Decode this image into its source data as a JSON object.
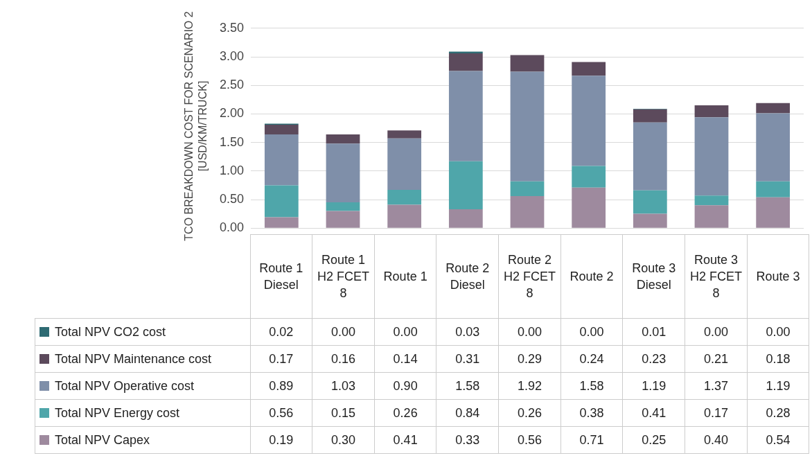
{
  "chart_data": {
    "type": "bar",
    "stacked": true,
    "ylabel": "TCO BREAKDOWN COST FOR SCENARIO 2 [USD/KM/TRUCK]",
    "categories": [
      "Route 1 Diesel",
      "Route 1 H2 FCET 8",
      "Route 1",
      "Route 2 Diesel",
      "Route 2 H2 FCET 8",
      "Route 2",
      "Route 3 Diesel",
      "Route 3 H2 FCET 8",
      "Route 3"
    ],
    "series": [
      {
        "name": "Total NPV Capex",
        "color": "#9e8a9e",
        "values": [
          0.19,
          0.3,
          0.41,
          0.33,
          0.56,
          0.71,
          0.25,
          0.4,
          0.54
        ],
        "value_labels": [
          "0.19",
          "0.30",
          "0.41",
          "0.33",
          "0.56",
          "0.71",
          "0.25",
          "0.40",
          "0.54"
        ]
      },
      {
        "name": "Total NPV Energy cost",
        "color": "#4fa6aa",
        "values": [
          0.56,
          0.15,
          0.26,
          0.84,
          0.26,
          0.38,
          0.41,
          0.17,
          0.28
        ],
        "value_labels": [
          "0.56",
          "0.15",
          "0.26",
          "0.84",
          "0.26",
          "0.38",
          "0.41",
          "0.17",
          "0.28"
        ]
      },
      {
        "name": "Total NPV Operative cost",
        "color": "#7f8fa9",
        "values": [
          0.89,
          1.03,
          0.9,
          1.58,
          1.92,
          1.58,
          1.19,
          1.37,
          1.19
        ],
        "value_labels": [
          "0.89",
          "1.03",
          "0.90",
          "1.58",
          "1.92",
          "1.58",
          "1.19",
          "1.37",
          "1.19"
        ]
      },
      {
        "name": "Total NPV Maintenance cost",
        "color": "#5c4a5c",
        "values": [
          0.17,
          0.16,
          0.14,
          0.31,
          0.29,
          0.24,
          0.23,
          0.21,
          0.18
        ],
        "value_labels": [
          "0.17",
          "0.16",
          "0.14",
          "0.31",
          "0.29",
          "0.24",
          "0.23",
          "0.21",
          "0.18"
        ]
      },
      {
        "name": "Total NPV CO2 cost",
        "color": "#2e6b73",
        "values": [
          0.02,
          0.0,
          0.0,
          0.03,
          0.0,
          0.0,
          0.01,
          0.0,
          0.0
        ],
        "value_labels": [
          "0.02",
          "0.00",
          "0.00",
          "0.03",
          "0.00",
          "0.00",
          "0.01",
          "0.00",
          "0.00"
        ]
      }
    ],
    "ylim": [
      0,
      3.5
    ],
    "yticks": [
      {
        "value": 0,
        "label": "0.00"
      },
      {
        "value": 0.5,
        "label": "0.50"
      },
      {
        "value": 1,
        "label": "1.00"
      },
      {
        "value": 1.5,
        "label": "1.50"
      },
      {
        "value": 2,
        "label": "2.00"
      },
      {
        "value": 2.5,
        "label": "2.50"
      },
      {
        "value": 3,
        "label": "3.00"
      },
      {
        "value": 3.5,
        "label": "3.50"
      }
    ],
    "grid": "y",
    "legend": "bottom"
  }
}
